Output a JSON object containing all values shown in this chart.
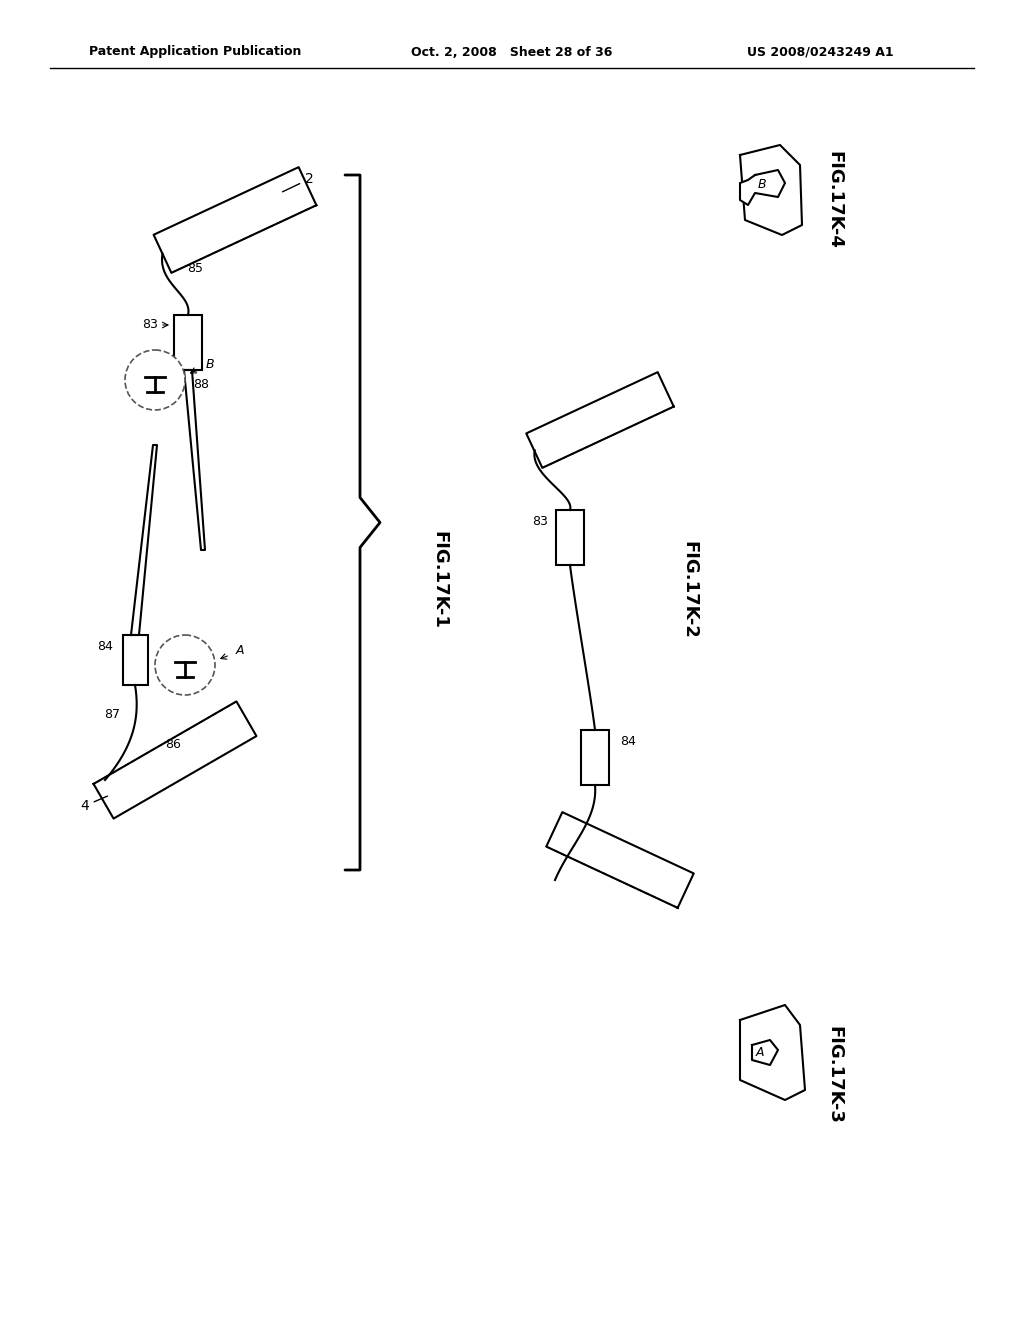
{
  "background_color": "#ffffff",
  "header_left": "Patent Application Publication",
  "header_mid": "Oct. 2, 2008   Sheet 28 of 36",
  "header_right": "US 2008/0243249 A1",
  "fig17k1_label": "FIG.17K-1",
  "fig17k2_label": "FIG.17K-2",
  "fig17k3_label": "FIG.17K-3",
  "fig17k4_label": "FIG.17K-4",
  "text_color": "#000000",
  "line_color": "#000000",
  "dashed_color": "#555555"
}
